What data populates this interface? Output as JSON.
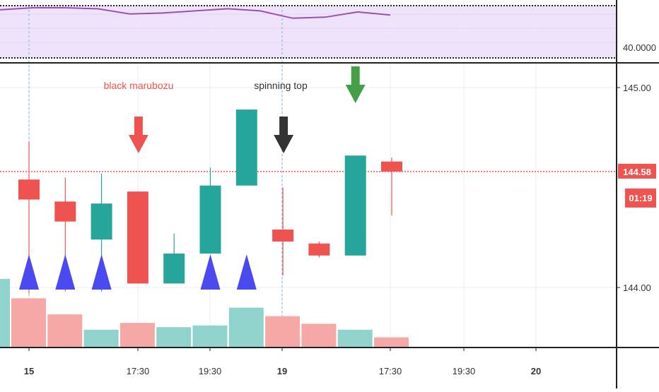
{
  "chart_data": {
    "type": "candlestick",
    "xlabel": "",
    "ylabel": "",
    "x_ticks": [
      "15",
      "17:30",
      "19:30",
      "19",
      "17:30",
      "19:30",
      "20"
    ],
    "price_axis": {
      "ticks": [
        "145.00",
        "144.00"
      ],
      "ylim": [
        143.7,
        145.12
      ]
    },
    "indicator_axis": {
      "ticks": [
        "40.0000"
      ],
      "ylim": [
        39,
        44
      ],
      "line_color": "#9c4fb0",
      "fill_color": "#efe3fb",
      "values": [
        43.6,
        43.8,
        43.8,
        43.7,
        43.2,
        43.3,
        43.5,
        43.7,
        43.5,
        42.8,
        42.9,
        43.4,
        43.1
      ]
    },
    "last_price": {
      "label": "144.58",
      "timer": "01:19",
      "value": 144.58,
      "color": "#ef5350"
    },
    "colors": {
      "up": "#26a69a",
      "down": "#ef5350",
      "vol_up": "#8fd3cc",
      "vol_down": "#f5a8a6"
    },
    "candles": [
      {
        "o": 144.54,
        "h": 144.73,
        "l": 143.97,
        "c": 144.44,
        "dir": "down",
        "vol": 0.58
      },
      {
        "o": 144.43,
        "h": 144.55,
        "l": 143.98,
        "c": 144.33,
        "dir": "down",
        "vol": 0.39
      },
      {
        "o": 144.24,
        "h": 144.57,
        "l": 143.98,
        "c": 144.42,
        "dir": "up",
        "vol": 0.21
      },
      {
        "o": 144.48,
        "h": 144.48,
        "l": 144.02,
        "c": 144.02,
        "dir": "down",
        "vol": 0.29
      },
      {
        "o": 144.02,
        "h": 144.27,
        "l": 144.02,
        "c": 144.17,
        "dir": "up",
        "vol": 0.24
      },
      {
        "o": 144.17,
        "h": 144.6,
        "l": 144.17,
        "c": 144.51,
        "dir": "up",
        "vol": 0.26
      },
      {
        "o": 144.51,
        "h": 144.89,
        "l": 144.51,
        "c": 144.89,
        "dir": "up",
        "vol": 0.47
      },
      {
        "o": 144.29,
        "h": 144.5,
        "l": 144.06,
        "c": 144.23,
        "dir": "down",
        "vol": 0.37
      },
      {
        "o": 144.22,
        "h": 144.23,
        "l": 144.15,
        "c": 144.16,
        "dir": "down",
        "vol": 0.28
      },
      {
        "o": 144.16,
        "h": 144.66,
        "l": 144.16,
        "c": 144.66,
        "dir": "up",
        "vol": 0.21
      },
      {
        "o": 144.63,
        "h": 144.65,
        "l": 144.36,
        "c": 144.58,
        "dir": "down",
        "vol": 0.12
      }
    ],
    "volume_left_stub": {
      "dir": "up",
      "vol": 0.81
    },
    "annotations": [
      {
        "text": "black marubozu",
        "candle": 3,
        "arrow": "down",
        "color": "#ef5350"
      },
      {
        "text": "spinning top",
        "candle": 7,
        "arrow": "down",
        "color": "#333333"
      },
      {
        "text": "",
        "candle": 9,
        "arrow": "down",
        "color": "#43a047"
      }
    ],
    "markers": {
      "type": "triangle-up",
      "color": "#4a4af0",
      "candles": [
        0,
        1,
        2,
        5,
        6
      ]
    }
  }
}
